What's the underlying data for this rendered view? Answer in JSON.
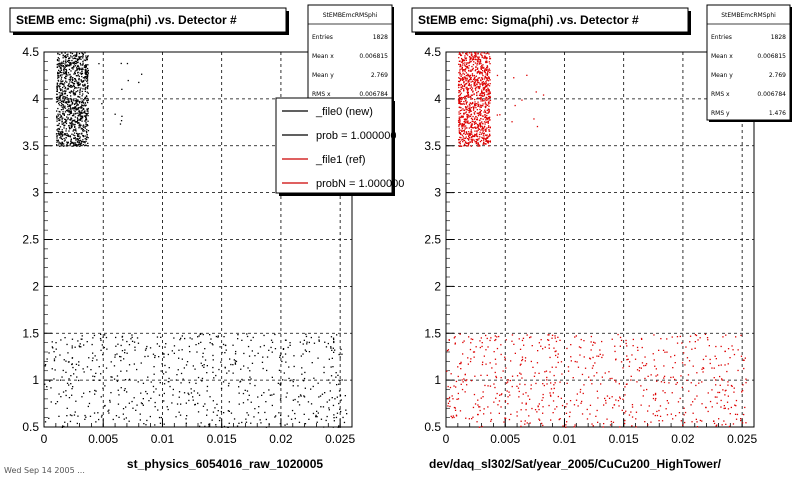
{
  "footer": {
    "text": "Wed Sep 14 2005 ..."
  },
  "chart_data": [
    {
      "type": "scatter",
      "title": "StEMB emc: Sigma(phi) .vs. Detector #",
      "xlabel": "st_physics_6054016_raw_1020005",
      "ylabel": "",
      "xlim": [
        0,
        0.026
      ],
      "ylim": [
        0.5,
        4.5
      ],
      "xticks": [
        "0",
        "0.005",
        "0.01",
        "0.015",
        "0.02",
        "0.025"
      ],
      "yticks": [
        "0.5",
        "1",
        "1.5",
        "2",
        "2.5",
        "3",
        "3.5",
        "4",
        "4.5"
      ],
      "grid": true,
      "marker_color": "#000000",
      "stats": {
        "title": "StEMBEmcRMSphi",
        "rows": [
          {
            "label": "Entries",
            "value": "1828"
          },
          {
            "label": "Mean x",
            "value": "0.006815"
          },
          {
            "label": "Mean y",
            "value": "2.769"
          },
          {
            "label": "RMS x",
            "value": "0.006784"
          }
        ]
      },
      "legend": {
        "placement": "top-right",
        "entries": [
          {
            "label": "_file0 (new)",
            "color": "#000000"
          },
          {
            "label": "prob = 1.000000",
            "color": "#000000"
          },
          {
            "label": "_file1 (ref)",
            "color": "#cc0000"
          },
          {
            "label": "probN = 1.000000",
            "color": "#cc0000"
          }
        ]
      },
      "clusters": [
        {
          "x_range": [
            0.001,
            0.0037
          ],
          "y_range": [
            3.5,
            4.5
          ],
          "count": 1000
        },
        {
          "x_range": [
            0.0,
            0.0255
          ],
          "y_range": [
            0.5,
            1.5
          ],
          "count": 700
        },
        {
          "x_range": [
            0.0042,
            0.0082
          ],
          "y_range": [
            3.7,
            4.4
          ],
          "count": 12
        }
      ]
    },
    {
      "type": "scatter",
      "title": "StEMB emc: Sigma(phi) .vs. Detector #",
      "xlabel": "dev/daq_sl302/Sat/year_2005/CuCu200_HighTower/",
      "ylabel": "",
      "xlim": [
        0,
        0.026
      ],
      "ylim": [
        0.5,
        4.5
      ],
      "xticks": [
        "0",
        "0.005",
        "0.01",
        "0.015",
        "0.02",
        "0.025"
      ],
      "yticks": [
        "0.5",
        "1",
        "1.5",
        "2",
        "2.5",
        "3",
        "3.5",
        "4",
        "4.5"
      ],
      "grid": true,
      "marker_color": "#dd0000",
      "stats": {
        "title": "StEMBEmcRMSphi",
        "rows": [
          {
            "label": "Entries",
            "value": "1828"
          },
          {
            "label": "Mean x",
            "value": "0.006815"
          },
          {
            "label": "Mean y",
            "value": "2.769"
          },
          {
            "label": "RMS x",
            "value": "0.006784"
          },
          {
            "label": "RMS y",
            "value": "1.476"
          }
        ]
      },
      "clusters": [
        {
          "x_range": [
            0.001,
            0.0037
          ],
          "y_range": [
            3.5,
            4.5
          ],
          "count": 1000
        },
        {
          "x_range": [
            0.0,
            0.0255
          ],
          "y_range": [
            0.5,
            1.5
          ],
          "count": 700
        },
        {
          "x_range": [
            0.0042,
            0.0082
          ],
          "y_range": [
            3.7,
            4.4
          ],
          "count": 12
        }
      ]
    }
  ]
}
